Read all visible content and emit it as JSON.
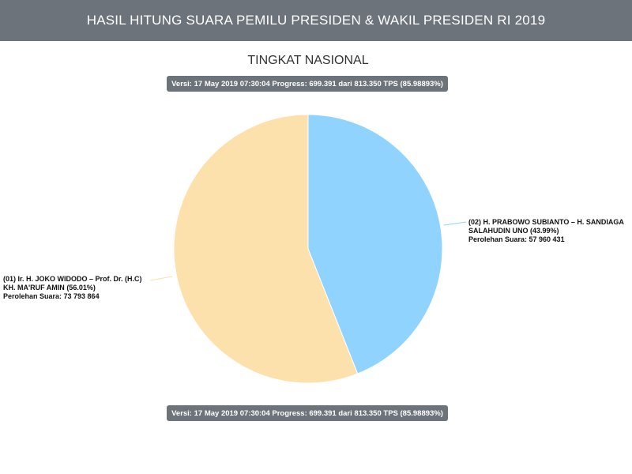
{
  "header": {
    "title": "HASIL HITUNG SUARA PEMILU PRESIDEN & WAKIL PRESIDEN RI 2019"
  },
  "chart_data": {
    "type": "pie",
    "title": "TINGKAT NASIONAL",
    "version_badge": "Versi: 17 May 2019 07:30:04 Progress: 699.391 dari 813.350 TPS (85.98893%)",
    "slices": [
      {
        "name": "(02) H. PRABOWO SUBIANTO – H. SANDIAGA SALAHUDIN UNO",
        "percent_label": "(43.99%)",
        "percent": 43.99,
        "votes_label": "Perolehan Suara: 57 960 431",
        "votes": 57960431,
        "color": "#8fd3fe"
      },
      {
        "name": "(01) Ir. H. JOKO WIDODO – Prof. Dr. (H.C) KH. MA'RUF AMIN",
        "percent_label": "(56.01%)",
        "percent": 56.01,
        "votes_label": "Perolehan Suara: 73 793 864",
        "votes": 73793864,
        "color": "#fde1ac"
      }
    ]
  }
}
